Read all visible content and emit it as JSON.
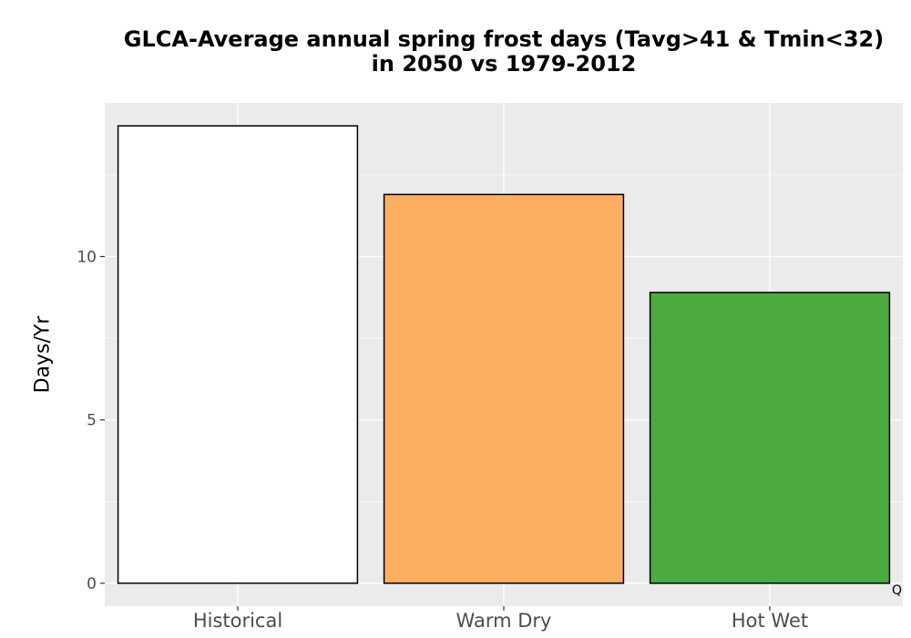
{
  "chart_data": {
    "type": "bar",
    "title_lines": [
      "GLCA-Average annual spring frost days (Tavg>41 & Tmin<32)",
      "in 2050 vs 1979-2012"
    ],
    "xlabel": "",
    "ylabel": "Days/Yr",
    "categories": [
      "Historical",
      "Warm Dry",
      "Hot Wet"
    ],
    "values": [
      14.0,
      11.9,
      8.9
    ],
    "colors": [
      "#FFFFFF",
      "#FDAE61",
      "#4DAA40"
    ],
    "ylim": [
      -0.7,
      14.7
    ],
    "yticks": [
      0,
      5,
      10
    ],
    "grid": true,
    "legend": "none",
    "panel_background": "#EBEBEB",
    "corner_text": "Q"
  }
}
